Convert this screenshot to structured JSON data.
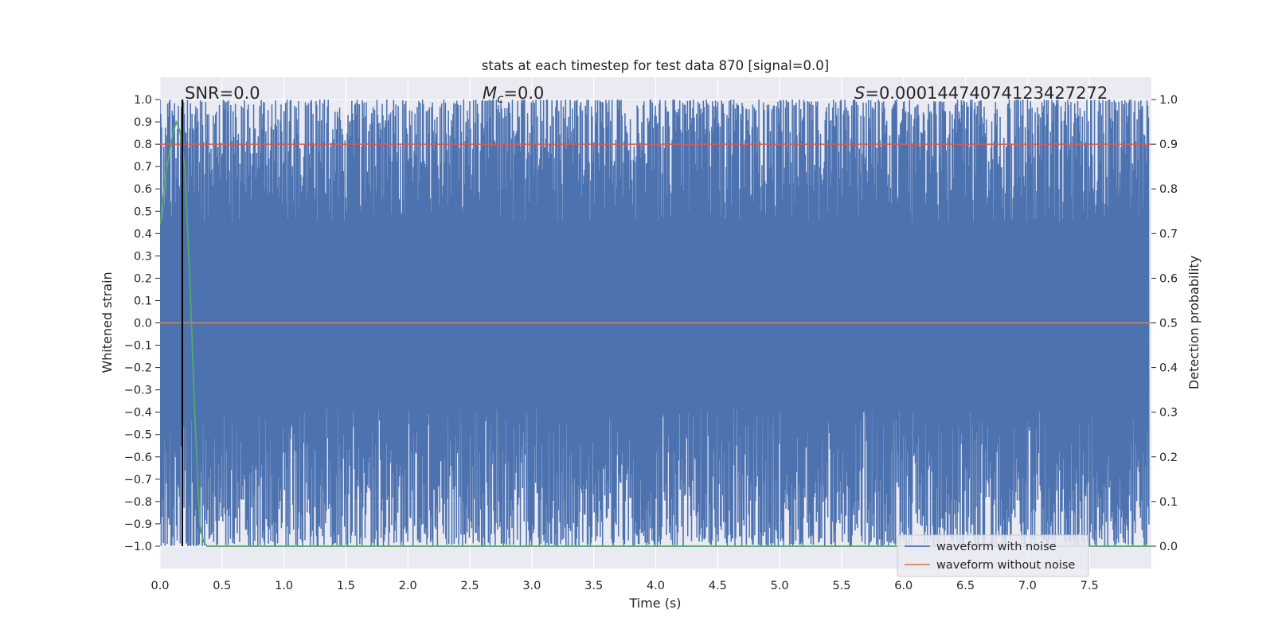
{
  "chart_data": {
    "type": "line",
    "title": "stats at each timestep for test data 870 [signal=0.0]",
    "xlabel": "Time (s)",
    "ylabel": "Whitened strain",
    "ylabel_right": "Detection probability",
    "xlim": [
      0.0,
      8.0
    ],
    "ylim": [
      -1.1,
      1.1
    ],
    "ylim_right": [
      -0.05,
      1.05
    ],
    "x_ticks": [
      "0.0",
      "0.5",
      "1.0",
      "1.5",
      "2.0",
      "2.5",
      "3.0",
      "3.5",
      "4.0",
      "4.5",
      "5.0",
      "5.5",
      "6.0",
      "6.5",
      "7.0",
      "7.5"
    ],
    "y_ticks": [
      "1.0",
      "0.9",
      "0.8",
      "0.7",
      "0.6",
      "0.5",
      "0.4",
      "0.3",
      "0.2",
      "0.1",
      "0.0",
      "−0.1",
      "−0.2",
      "−0.3",
      "−0.4",
      "−0.5",
      "−0.6",
      "−0.7",
      "−0.8",
      "−0.9",
      "−1.0"
    ],
    "y_ticks_right": [
      "1.0",
      "0.9",
      "0.8",
      "0.7",
      "0.6",
      "0.5",
      "0.4",
      "0.3",
      "0.2",
      "0.1",
      "0.0"
    ],
    "grid": true,
    "background": "#eaeaf2",
    "annotations": {
      "snr": "SNR=0.0",
      "mc_symbol": "M",
      "mc_sub": "c",
      "mc_value": "=0.0",
      "s_symbol": "S",
      "s_value": "=0.00014474074123427272"
    },
    "series": [
      {
        "name": "waveform with noise",
        "color": "#4c72b0",
        "axis": "left",
        "description_values": "dense noise filling approx [-1.0, 1.0]",
        "n_points": 2600
      },
      {
        "name": "waveform without noise",
        "color": "#dd8452",
        "axis": "left",
        "x": [
          0.0,
          8.0
        ],
        "y": [
          0.0,
          0.0
        ]
      },
      {
        "color": "#55a868",
        "axis": "right",
        "x": [
          0.0,
          0.05,
          0.1,
          0.13,
          0.16,
          0.2,
          0.24,
          0.28,
          0.32,
          0.35,
          0.38,
          0.5,
          1.0,
          2.0,
          3.0,
          4.0,
          5.0,
          6.0,
          7.0,
          8.0
        ],
        "y": [
          0.72,
          0.84,
          0.92,
          0.95,
          0.93,
          0.85,
          0.6,
          0.3,
          0.05,
          0.01,
          0.0,
          0.0,
          0.0,
          0.0,
          0.0,
          0.0,
          0.0,
          0.0,
          0.0,
          0.0
        ]
      },
      {
        "color": "#dd5a4a",
        "axis": "right",
        "x": [
          0.0,
          8.0
        ],
        "y": [
          0.9,
          0.9
        ]
      }
    ],
    "vline": {
      "x": 0.18,
      "color": "#000000"
    },
    "legend": {
      "placement": "bottom-right",
      "entries": [
        "waveform with noise",
        "waveform without noise"
      ]
    }
  }
}
